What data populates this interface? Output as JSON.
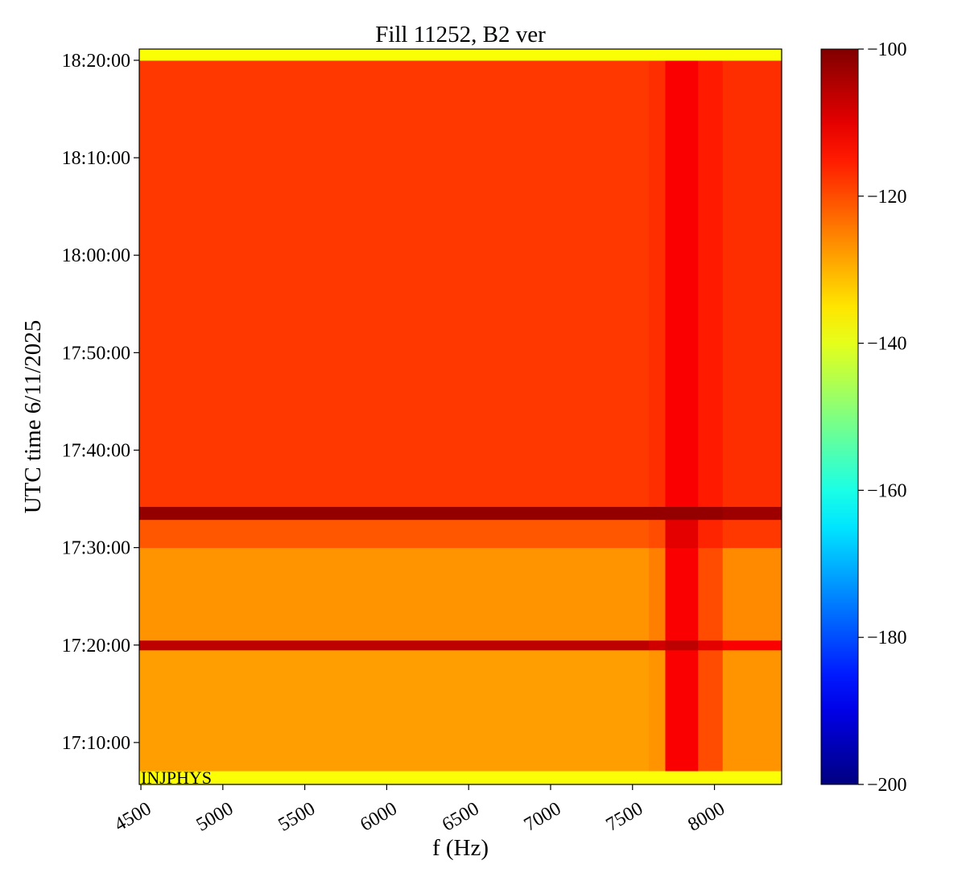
{
  "chart_data": {
    "type": "heatmap",
    "title": "Fill 11252, B2 ver",
    "x_label": "f (Hz)",
    "y_label": "UTC time 6/11/2025",
    "annotation": "INJPHYS",
    "colormap": "jet",
    "x_edges": [
      4490,
      7600,
      7700,
      7900,
      8050,
      8410
    ],
    "y_edges": [
      61542,
      61626,
      62370,
      62430,
      63000,
      63173,
      63253,
      66000,
      66069
    ],
    "z": [
      [
        -138,
        -138,
        -138,
        -138,
        -138
      ],
      [
        -128,
        -127,
        -112,
        -120,
        -127
      ],
      [
        -106,
        -108,
        -106,
        -110,
        -112
      ],
      [
        -127,
        -125,
        -112,
        -120,
        -126
      ],
      [
        -121,
        -120,
        -110,
        -116,
        -118
      ],
      [
        -102,
        -102,
        -102,
        -102,
        -103
      ],
      [
        -118,
        -117,
        -112,
        -115,
        -117
      ],
      [
        -138,
        -138,
        -138,
        -138,
        -138
      ]
    ],
    "xlim": [
      4490,
      8410
    ],
    "xticks": [
      4500,
      5000,
      5500,
      6000,
      6500,
      7000,
      7500,
      8000
    ],
    "ylim": [
      61542,
      66069
    ],
    "yticks": [
      {
        "value": 61800,
        "label": "17:10:00"
      },
      {
        "value": 62400,
        "label": "17:20:00"
      },
      {
        "value": 63000,
        "label": "17:30:00"
      },
      {
        "value": 63600,
        "label": "17:40:00"
      },
      {
        "value": 64200,
        "label": "17:50:00"
      },
      {
        "value": 64800,
        "label": "18:00:00"
      },
      {
        "value": 65400,
        "label": "18:10:00"
      },
      {
        "value": 66000,
        "label": "18:20:00"
      }
    ],
    "clim": [
      -200,
      -100
    ],
    "cticks": [
      {
        "value": -200,
        "label": "−200"
      },
      {
        "value": -180,
        "label": "−180"
      },
      {
        "value": -160,
        "label": "−160"
      },
      {
        "value": -140,
        "label": "−140"
      },
      {
        "value": -120,
        "label": "−120"
      },
      {
        "value": -100,
        "label": "−100"
      }
    ]
  }
}
